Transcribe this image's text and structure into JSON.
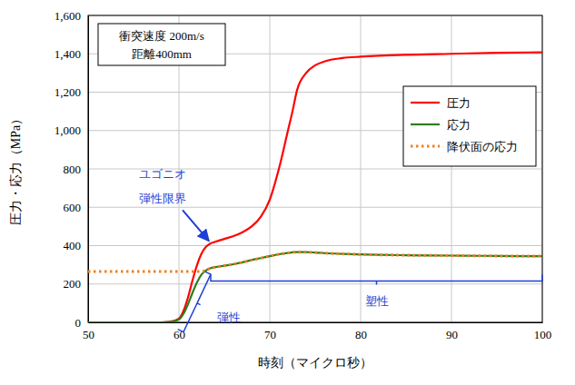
{
  "chart_data": {
    "type": "line",
    "x_label": "時刻（マイクロ秒）",
    "y_label": "圧力・応力（MPa）",
    "x": [
      50,
      55,
      58,
      59,
      60,
      60.5,
      61,
      61.5,
      62,
      62.5,
      63,
      63.5,
      64,
      65,
      66,
      67,
      68,
      69,
      70,
      71,
      72,
      72.5,
      73,
      74,
      75,
      76,
      78,
      80,
      85,
      90,
      95,
      100
    ],
    "series": [
      {
        "name": "圧力",
        "color": "#ff0000",
        "line_style": "solid",
        "values": [
          0,
          0,
          0,
          3,
          20,
          60,
          130,
          220,
          300,
          360,
          395,
          412,
          420,
          435,
          450,
          470,
          500,
          550,
          640,
          800,
          1000,
          1100,
          1210,
          1300,
          1340,
          1360,
          1378,
          1385,
          1395,
          1400,
          1405,
          1408
        ]
      },
      {
        "name": "応力",
        "color": "#2e7d1e",
        "line_style": "solid",
        "values": [
          0,
          0,
          0,
          2,
          15,
          45,
          95,
          155,
          210,
          250,
          272,
          283,
          288,
          295,
          303,
          313,
          325,
          335,
          345,
          355,
          362,
          365,
          366,
          366,
          364,
          361,
          357,
          354,
          350,
          348,
          346,
          345
        ]
      },
      {
        "name": "降伏面の応力",
        "color": "#f08020",
        "line_style": "dotted",
        "values": [
          265,
          265,
          265,
          265,
          265,
          265,
          265,
          265,
          265,
          265,
          272,
          283,
          288,
          295,
          303,
          313,
          325,
          335,
          345,
          355,
          362,
          365,
          366,
          366,
          364,
          361,
          357,
          354,
          350,
          348,
          346,
          345
        ]
      }
    ],
    "xlim": [
      50,
      100
    ],
    "ylim": [
      0,
      1600
    ],
    "xticks": [
      50,
      60,
      70,
      80,
      90,
      100
    ],
    "yticks": [
      0,
      200,
      400,
      600,
      800,
      {
        "value": 1000,
        "label": "1,000"
      },
      {
        "value": 1200,
        "label": "1,200"
      },
      {
        "value": 1400,
        "label": "1,400"
      },
      {
        "value": 1600,
        "label": "1,600"
      }
    ],
    "grid": true,
    "legend": "upper right",
    "info_box": [
      "衝突速度 200m/s",
      "距離400mm"
    ],
    "annotations": [
      {
        "text": [
          "ユゴニオ",
          "弾性限界"
        ],
        "x": 63.5,
        "y": 410,
        "color": "#1f3fd6"
      }
    ],
    "braces": [
      {
        "text": "弾性",
        "x": [
          60.5,
          63.5
        ],
        "y": [
          -50,
          250
        ],
        "color": "#1f3fd6"
      },
      {
        "text": "塑性",
        "x": [
          63.5,
          100
        ],
        "y": [
          215,
          215
        ],
        "color": "#1f3fd6"
      }
    ]
  }
}
